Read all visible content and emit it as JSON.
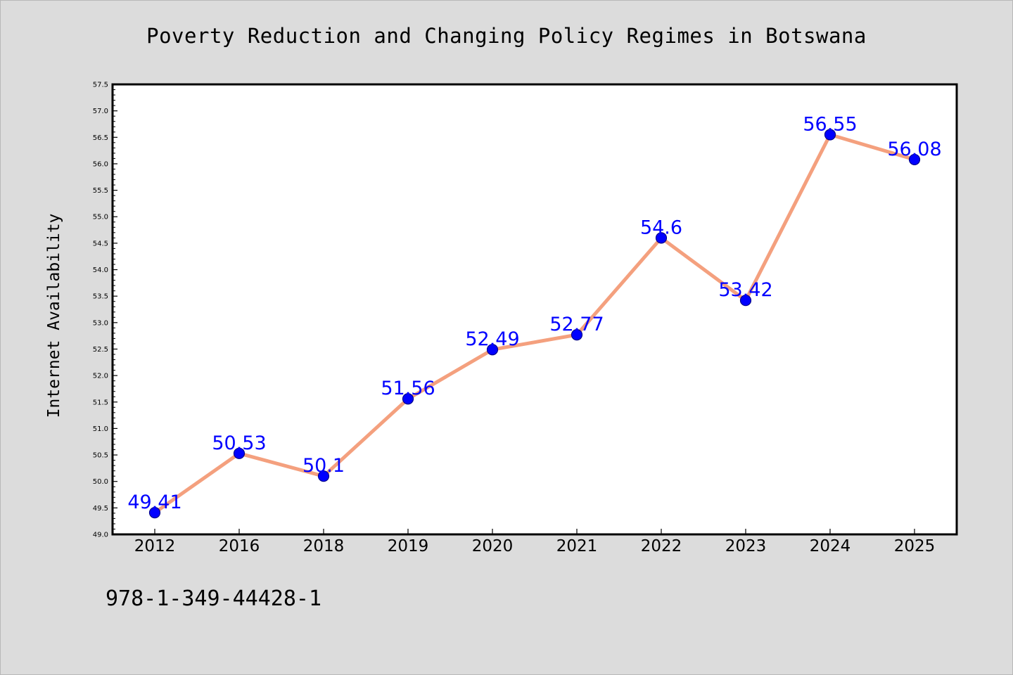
{
  "chart_data": {
    "type": "line",
    "title": "Poverty Reduction and Changing Policy Regimes in Botswana",
    "xlabel": "",
    "ylabel": "Internet Availability",
    "categories": [
      "2012",
      "2016",
      "2018",
      "2019",
      "2020",
      "2021",
      "2022",
      "2023",
      "2024",
      "2025"
    ],
    "series": [
      {
        "values": [
          49.41,
          50.53,
          50.1,
          51.56,
          52.49,
          52.77,
          54.6,
          53.42,
          56.55,
          56.08
        ],
        "labels": [
          "49.41",
          "50.53",
          "50.1",
          "51.56",
          "52.49",
          "52.77",
          "54.6",
          "53.42",
          "56.55",
          "56.08"
        ],
        "line_color": "#f4a07e",
        "marker_color": "#0000ff"
      }
    ],
    "ylim": [
      49.0,
      57.5
    ],
    "yticks": [
      "49.0",
      "49.5",
      "50.0",
      "50.5",
      "51.0",
      "51.5",
      "52.0",
      "52.5",
      "53.0",
      "53.5",
      "54.0",
      "54.5",
      "55.0",
      "55.5",
      "56.0",
      "56.5",
      "57.0",
      "57.5"
    ],
    "grid": false,
    "legend": "none"
  },
  "footer": {
    "id_text": "978-1-349-44428-1"
  },
  "colors": {
    "background": "#dcdcdc",
    "plot_background": "#ffffff",
    "line": "#f4a07e",
    "marker": "#0000ff",
    "data_label": "#0000ff"
  }
}
